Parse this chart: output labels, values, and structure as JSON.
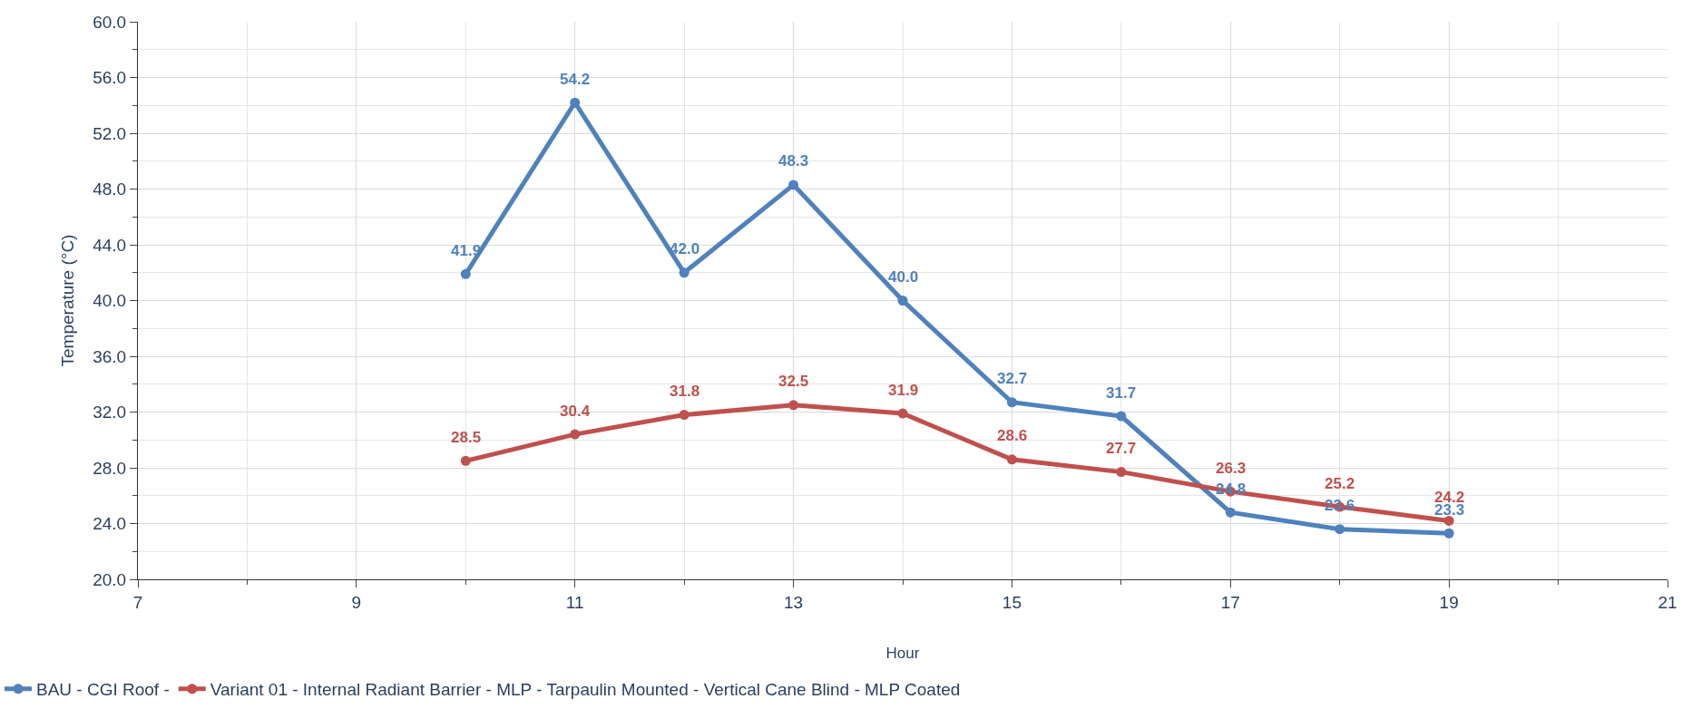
{
  "chart_data": {
    "type": "line",
    "xlabel": "Hour",
    "ylabel": "Temperature (°C)",
    "x": [
      10,
      11,
      12,
      13,
      14,
      15,
      16,
      17,
      18,
      19
    ],
    "series": [
      {
        "name": "BAU - CGI Roof -",
        "color": "#4f81bd",
        "values": [
          41.9,
          54.2,
          42.0,
          48.3,
          40.0,
          32.7,
          31.7,
          24.8,
          23.6,
          23.3
        ],
        "value_labels": [
          "41.9",
          "54.2",
          "42.0",
          "48.3",
          "40.0",
          "32.7",
          "31.7",
          "24.8",
          "23.6",
          "23.3"
        ]
      },
      {
        "name": "Variant 01 - Internal Radiant Barrier - MLP - Tarpaulin Mounted - Vertical Cane Blind - MLP Coated",
        "color": "#c0504d",
        "values": [
          28.5,
          30.4,
          31.8,
          32.5,
          31.9,
          28.6,
          27.7,
          26.3,
          25.2,
          24.2
        ],
        "value_labels": [
          "28.5",
          "30.4",
          "31.8",
          "32.5",
          "31.9",
          "28.6",
          "27.7",
          "26.3",
          "25.2",
          "24.2"
        ]
      }
    ],
    "xlim": [
      7,
      21
    ],
    "xticks": [
      7,
      9,
      11,
      13,
      15,
      17,
      19,
      21
    ],
    "ylim": [
      20,
      60
    ],
    "yticks": [
      {
        "value": 20,
        "label": "20.0"
      },
      {
        "value": 24,
        "label": "24.0"
      },
      {
        "value": 28,
        "label": "28.0"
      },
      {
        "value": 32,
        "label": "32.0"
      },
      {
        "value": 36,
        "label": "36.0"
      },
      {
        "value": 40,
        "label": "40.0"
      },
      {
        "value": 44,
        "label": "44.0"
      },
      {
        "value": 48,
        "label": "48.0"
      },
      {
        "value": 52,
        "label": "52.0"
      },
      {
        "value": 56,
        "label": "56.0"
      },
      {
        "value": 60,
        "label": "60.0"
      }
    ],
    "grid": true,
    "legend": "bottom left",
    "marker": "circle",
    "line_style": "solid",
    "data_labels": true
  }
}
